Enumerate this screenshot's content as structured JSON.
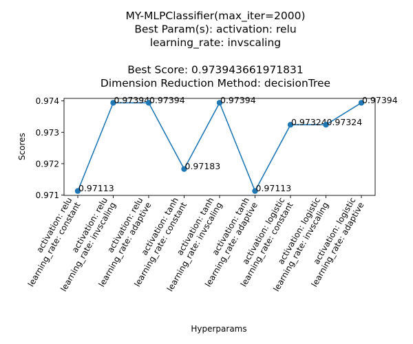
{
  "chart_data": {
    "type": "line",
    "title_lines": [
      "MY-MLPClassifier(max_iter=2000)",
      "Best Param(s): activation: relu",
      "learning_rate: invscaling",
      "",
      "Best Score: 0.973943661971831",
      "Dimension Reduction Method: decisionTree"
    ],
    "xlabel": "Hyperparams",
    "ylabel": "Scores",
    "categories": [
      [
        "activation: relu",
        "learning_rate: constant"
      ],
      [
        "activation: relu",
        "learning_rate: invscaling"
      ],
      [
        "activation: relu",
        "learning_rate: adaptive"
      ],
      [
        "activation: tanh",
        "learning_rate: constant"
      ],
      [
        "activation: tanh",
        "learning_rate: invscaling"
      ],
      [
        "activation: tanh",
        "learning_rate: adaptive"
      ],
      [
        "activation: logistic",
        "learning_rate: constant"
      ],
      [
        "activation: logistic",
        "learning_rate: invscaling"
      ],
      [
        "activation: logistic",
        "learning_rate: adaptive"
      ]
    ],
    "values": [
      0.97113,
      0.97394,
      0.97394,
      0.97183,
      0.97394,
      0.97113,
      0.97324,
      0.97324,
      0.97394
    ],
    "point_labels": [
      "0.97113",
      "0.97394",
      "0.97394",
      "0.97183",
      "0.97394",
      "0.97113",
      "0.97324",
      "0.97324",
      "0.97394"
    ],
    "yticks": [
      0.971,
      0.972,
      0.973,
      0.974
    ],
    "ytick_labels": [
      "0.971",
      "0.972",
      "0.973",
      "0.974"
    ],
    "ylim": [
      0.97099,
      0.97408
    ],
    "grid": false,
    "color": "#1f77b4"
  }
}
